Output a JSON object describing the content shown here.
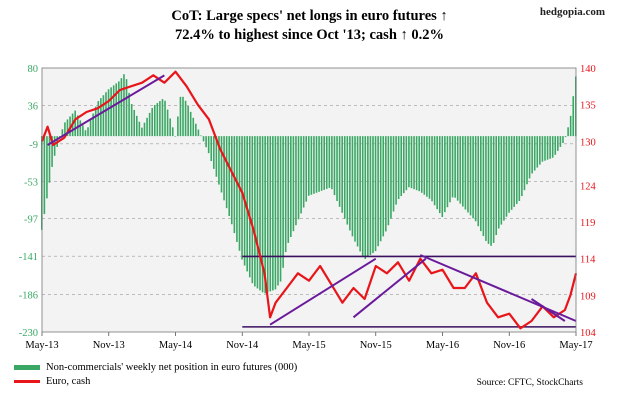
{
  "brand": "hedgopia.com",
  "title_line1": "CoT: Large specs' net longs in euro futures ↑",
  "title_line2": "72.4% to highest since Oct '13; cash ↑ 0.2%",
  "source": "Source: CFTC, StockCharts",
  "colors": {
    "bars": "#3aa864",
    "line": "#e8151b",
    "trend": "#6a1a9a",
    "hline": "#3b1060",
    "plot_bg": "#f3f3f3"
  },
  "chart_data": {
    "type": "bar+line",
    "x_tick_labels": [
      "May-13",
      "Nov-13",
      "May-14",
      "Nov-14",
      "May-15",
      "Nov-15",
      "May-16",
      "Nov-16",
      "May-17"
    ],
    "left_axis": {
      "ticks": [
        80,
        36,
        -9,
        -53,
        -97,
        -141,
        -186,
        -230
      ],
      "ylim": [
        -230,
        80
      ]
    },
    "right_axis": {
      "ticks": [
        140,
        135,
        130,
        124,
        119,
        114,
        109,
        104
      ],
      "ylim": [
        104,
        140
      ]
    },
    "series": [
      {
        "name": "Non-commercials' weekly net position in euro futures (000)",
        "type": "bar",
        "axis": "left",
        "points": [
          [
            0,
            -110
          ],
          [
            0.5,
            -70
          ],
          [
            1,
            -30
          ],
          [
            2,
            15
          ],
          [
            3,
            30
          ],
          [
            4,
            5
          ],
          [
            5,
            40
          ],
          [
            6,
            55
          ],
          [
            7,
            65
          ],
          [
            7.5,
            75
          ],
          [
            8,
            40
          ],
          [
            9,
            10
          ],
          [
            10,
            35
          ],
          [
            11,
            45
          ],
          [
            12,
            0
          ],
          [
            12.5,
            50
          ],
          [
            13,
            40
          ],
          [
            14,
            10
          ],
          [
            15,
            -20
          ],
          [
            16,
            -60
          ],
          [
            17,
            -100
          ],
          [
            18,
            -145
          ],
          [
            19,
            -175
          ],
          [
            20,
            -185
          ],
          [
            21,
            -180
          ],
          [
            21.5,
            -170
          ],
          [
            22,
            -130
          ],
          [
            23,
            -100
          ],
          [
            24,
            -70
          ],
          [
            25,
            -65
          ],
          [
            26,
            -60
          ],
          [
            27,
            -90
          ],
          [
            28,
            -120
          ],
          [
            29,
            -145
          ],
          [
            30,
            -135
          ],
          [
            31,
            -110
          ],
          [
            32,
            -75
          ],
          [
            33,
            -60
          ],
          [
            34,
            -65
          ],
          [
            35,
            -75
          ],
          [
            36,
            -95
          ],
          [
            37,
            -70
          ],
          [
            38,
            -85
          ],
          [
            39,
            -100
          ],
          [
            40,
            -125
          ],
          [
            40.5,
            -130
          ],
          [
            41,
            -110
          ],
          [
            42,
            -90
          ],
          [
            43,
            -75
          ],
          [
            44,
            -45
          ],
          [
            45,
            -30
          ],
          [
            46,
            -25
          ],
          [
            47,
            -5
          ],
          [
            47.5,
            20
          ],
          [
            48,
            70
          ]
        ]
      },
      {
        "name": "Euro, cash",
        "type": "line",
        "axis": "right",
        "points": [
          [
            0,
            130
          ],
          [
            0.5,
            132
          ],
          [
            1,
            129.5
          ],
          [
            2,
            130.5
          ],
          [
            3,
            133
          ],
          [
            4,
            134
          ],
          [
            5,
            134.5
          ],
          [
            6,
            135.5
          ],
          [
            7,
            137
          ],
          [
            8,
            137.5
          ],
          [
            9,
            138
          ],
          [
            10,
            139
          ],
          [
            11,
            138
          ],
          [
            12,
            139.5
          ],
          [
            13,
            137.5
          ],
          [
            14,
            135
          ],
          [
            15,
            133
          ],
          [
            16,
            129
          ],
          [
            17,
            126
          ],
          [
            18,
            123
          ],
          [
            19,
            118
          ],
          [
            20,
            112
          ],
          [
            20.5,
            106
          ],
          [
            21,
            108
          ],
          [
            22,
            110
          ],
          [
            23,
            112
          ],
          [
            24,
            111
          ],
          [
            25,
            113
          ],
          [
            26,
            110.5
          ],
          [
            27,
            108
          ],
          [
            28,
            110
          ],
          [
            29,
            108.5
          ],
          [
            30,
            113
          ],
          [
            31,
            112
          ],
          [
            32,
            113.5
          ],
          [
            33,
            111
          ],
          [
            34,
            114
          ],
          [
            35,
            112
          ],
          [
            36,
            112.5
          ],
          [
            37,
            110
          ],
          [
            38,
            110
          ],
          [
            39,
            112
          ],
          [
            40,
            108
          ],
          [
            41,
            106
          ],
          [
            42,
            106.5
          ],
          [
            43,
            104.5
          ],
          [
            44,
            105.5
          ],
          [
            45,
            107.5
          ],
          [
            46,
            106
          ],
          [
            47,
            107
          ],
          [
            47.5,
            109
          ],
          [
            48,
            112
          ]
        ]
      }
    ],
    "trend_lines": [
      {
        "axis": "right",
        "from": [
          0.5,
          129.5
        ],
        "to": [
          11,
          139
        ]
      },
      {
        "axis": "right",
        "from": [
          20.5,
          105
        ],
        "to": [
          30,
          114
        ]
      },
      {
        "axis": "right",
        "from": [
          28,
          106
        ],
        "to": [
          34.5,
          114
        ]
      },
      {
        "axis": "right",
        "from": [
          34,
          114.5
        ],
        "to": [
          48,
          105.5
        ]
      },
      {
        "axis": "right",
        "from": [
          44,
          108.5
        ],
        "to": [
          47,
          105.5
        ]
      }
    ],
    "horizontal_lines": [
      {
        "axis": "right",
        "y": 114.3,
        "from": 18,
        "to": 48
      },
      {
        "axis": "right",
        "y": 104.7,
        "from": 18,
        "to": 48
      }
    ],
    "legend": [
      {
        "label": "Non-commercials' weekly net position in euro futures (000)",
        "type": "bar"
      },
      {
        "label": "Euro, cash",
        "type": "line"
      }
    ],
    "legend_position": "bottom-left",
    "grid": "horizontal dashed"
  }
}
